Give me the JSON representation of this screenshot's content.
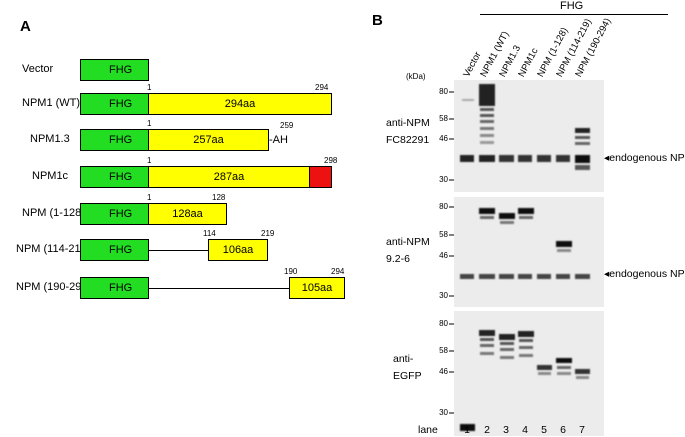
{
  "panelA": {
    "label": "A",
    "fhg_label": "FHG",
    "constructs": [
      {
        "name": "Vector",
        "segment": "",
        "start": "",
        "end": "",
        "suffix": ""
      },
      {
        "name": "NPM1 (WT)",
        "segment": "294aa",
        "start": "1",
        "end": "294",
        "suffix": ""
      },
      {
        "name": "NPM1.3",
        "segment": "257aa",
        "start": "1",
        "end": "259",
        "suffix": "-AH"
      },
      {
        "name": "NPM1c",
        "segment": "287aa",
        "start": "1",
        "end": "298",
        "suffix": ""
      },
      {
        "name": "NPM (1-128)",
        "segment": "128aa",
        "start": "1",
        "end": "128",
        "suffix": ""
      },
      {
        "name": "NPM (114-219)",
        "segment": "106aa",
        "start": "114",
        "end": "219",
        "suffix": ""
      },
      {
        "name": "NPM (190-294)",
        "segment": "105aa",
        "start": "190",
        "end": "294",
        "suffix": ""
      }
    ]
  },
  "panelB": {
    "label": "B",
    "fhg_header": "FHG",
    "kda_unit": "(kDa)",
    "lane_labels": [
      "Vector",
      "NPM1 (WT)",
      "NPM1.3",
      "NPM1c",
      "NPM (1-128)",
      "NPM (114-219)",
      "NPM (190-294)"
    ],
    "blots": [
      {
        "antibody_line1": "anti-NPM",
        "antibody_line2": "FC82291",
        "markers": [
          "80",
          "58",
          "46",
          "30"
        ],
        "endogenous": "endogenous NPM"
      },
      {
        "antibody_line1": "anti-NPM",
        "antibody_line2": "9.2-6",
        "markers": [
          "80",
          "58",
          "46",
          "30"
        ],
        "endogenous": "endogenous NPM"
      },
      {
        "antibody_line1": "anti-",
        "antibody_line2": "EGFP",
        "markers": [
          "80",
          "58",
          "46",
          "30"
        ],
        "endogenous": ""
      }
    ],
    "lane_word": "lane",
    "lane_numbers": [
      "1",
      "2",
      "3",
      "4",
      "5",
      "6",
      "7"
    ]
  }
}
